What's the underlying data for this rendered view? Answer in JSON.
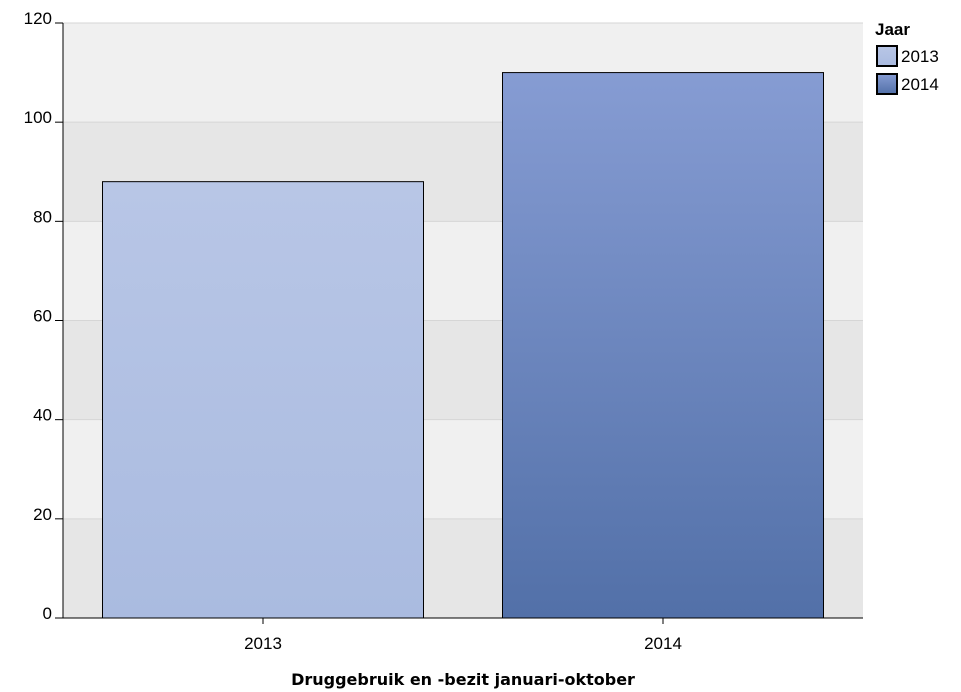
{
  "chart_data": {
    "type": "bar",
    "title": "",
    "xlabel": "Druggebruik en -bezit januari-oktober",
    "ylabel": "",
    "categories": [
      "2013",
      "2014"
    ],
    "values": [
      88,
      110
    ],
    "ylim": [
      0,
      120
    ],
    "yticks": [
      0,
      20,
      40,
      60,
      80,
      100,
      120
    ],
    "grid": true,
    "legend": {
      "title": "Jaar",
      "placement": "top-right",
      "entries": [
        "2013",
        "2014"
      ]
    },
    "colors": {
      "2013": {
        "top": "#B8C6E6",
        "bottom": "#AABBE0"
      },
      "2014": {
        "top": "#869CD3",
        "bottom": "#5270A8"
      },
      "band_light": "#F0F0F0",
      "band_dark": "#E6E6E6",
      "bar_stroke": "#000000"
    }
  }
}
